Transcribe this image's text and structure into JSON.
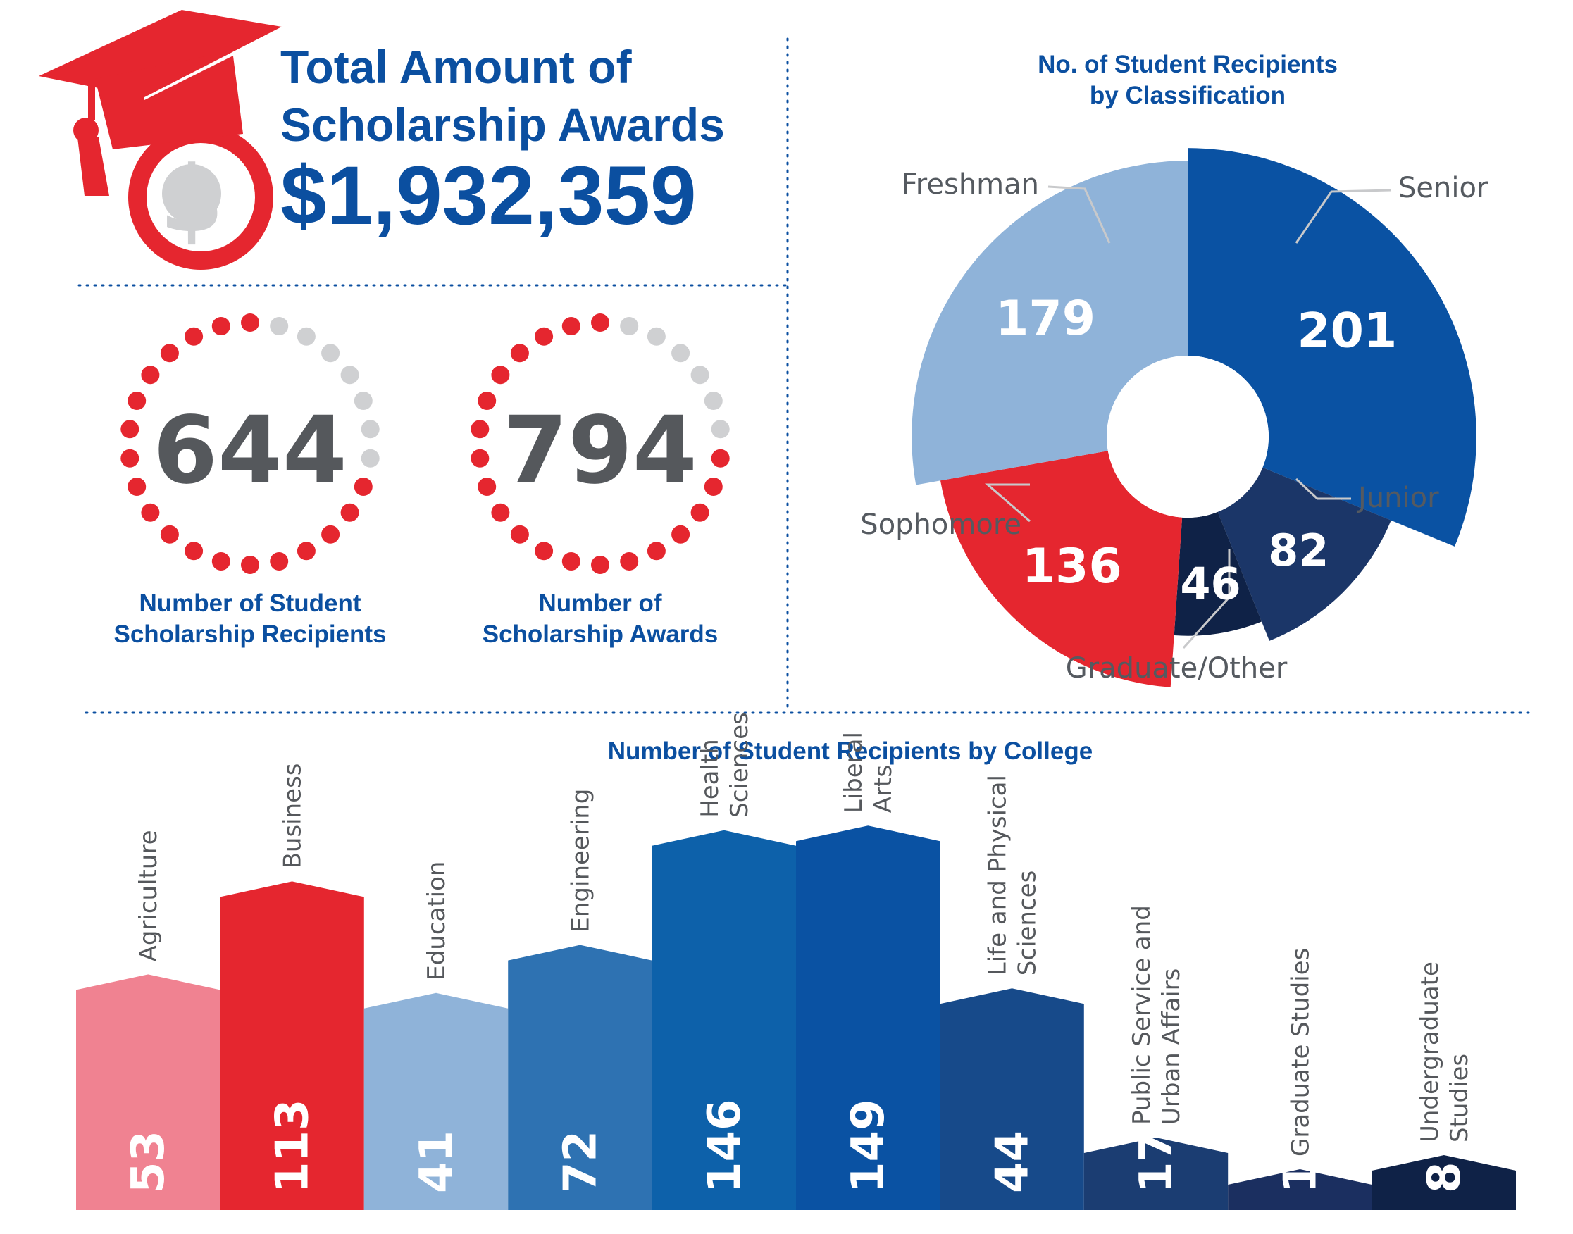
{
  "header": {
    "title_line1": "Total Amount of",
    "title_line2": "Scholarship Awards",
    "total_amount": "$1,932,359",
    "icon": "graduation-cap-dollar-icon",
    "dollar_symbol": "$"
  },
  "stats": [
    {
      "value": "644",
      "label_line1": "Number of Student",
      "label_line2": "Scholarship Recipients",
      "filled_fraction": 0.72
    },
    {
      "value": "794",
      "label_line1": "Number of",
      "label_line2": "Scholarship Awards",
      "filled_fraction": 0.78
    }
  ],
  "colors": {
    "brand_blue": "#0b4fa0",
    "red": "#e5262f",
    "dot_grey": "#cfd0d2",
    "text_grey": "#55585c"
  },
  "chart_data": [
    {
      "type": "pie",
      "title_line1": "No. of Student Recipients",
      "title_line2": "by Classification",
      "slices": [
        {
          "label": "Senior",
          "value": 201,
          "display": "201",
          "color": "#0a52a3"
        },
        {
          "label": "Junior",
          "value": 82,
          "display": "82",
          "color": "#1b3668"
        },
        {
          "label": "Graduate/Other",
          "value": 46,
          "display": "46",
          "color": "#0f2247"
        },
        {
          "label": "Sophomore",
          "value": 136,
          "display": "136",
          "color": "#e5262f"
        },
        {
          "label": "Freshman",
          "value": 179,
          "display": "179",
          "color": "#8fb3d9"
        }
      ]
    },
    {
      "type": "bar",
      "title": "Number of Student Recipients by College",
      "categories": [
        [
          "Agriculture"
        ],
        [
          "Business"
        ],
        [
          "Education"
        ],
        [
          "Engineering"
        ],
        [
          "Health",
          "Sciences"
        ],
        [
          "Liberal",
          "Arts"
        ],
        [
          "Life and Physical",
          "Sciences"
        ],
        [
          "Public Service and",
          "Urban Affairs"
        ],
        [
          "Graduate Studies"
        ],
        [
          "Undergraduate",
          "Studies"
        ]
      ],
      "values": [
        53,
        113,
        41,
        72,
        146,
        149,
        44,
        17,
        1,
        8
      ],
      "colors": [
        "#f08291",
        "#e5262f",
        "#8fb3d9",
        "#2e72b2",
        "#0d61aa",
        "#0a52a3",
        "#174a8a",
        "#1b3d72",
        "#1b2f60",
        "#0f2247"
      ]
    }
  ]
}
